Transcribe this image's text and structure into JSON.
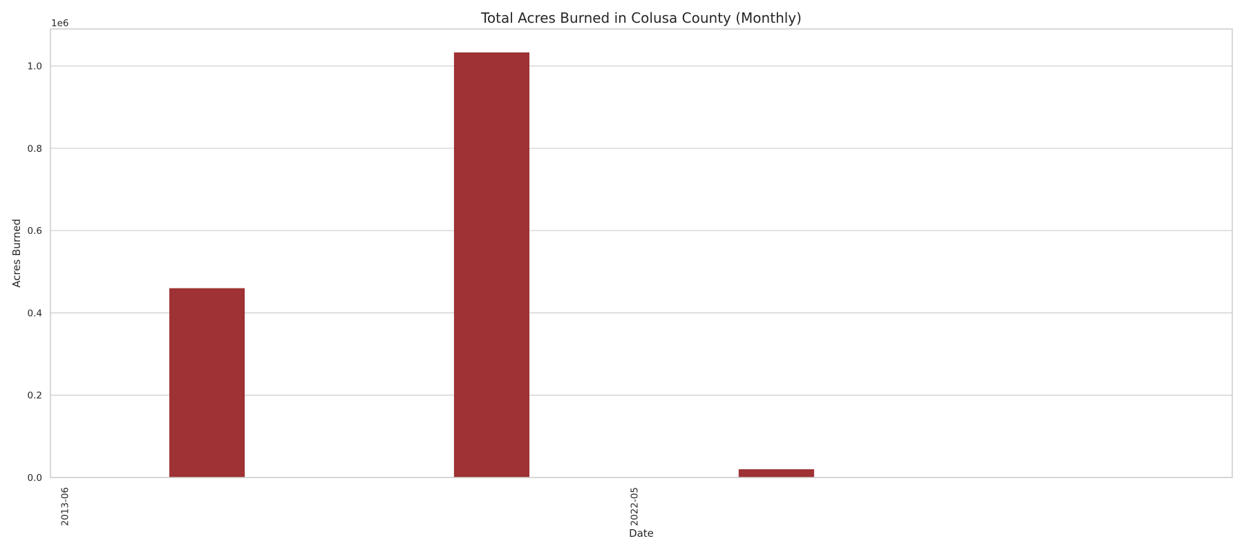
{
  "chart_data": {
    "type": "bar",
    "title": "Total Acres Burned in Colusa County (Monthly)",
    "xlabel": "Date",
    "ylabel": "Acres Burned",
    "y_offset_label": "1e6",
    "categories": [
      "2013-06",
      "",
      "",
      "",
      "2022-05",
      "",
      "",
      ""
    ],
    "visible_tick_labels": [
      "2013-06",
      "2022-05"
    ],
    "values": [
      0,
      460000,
      0,
      1033000,
      0,
      20000,
      0,
      0
    ],
    "ylim": [
      0,
      1090000
    ],
    "y_ticks": [
      0,
      200000,
      400000,
      600000,
      800000,
      1000000
    ],
    "y_tick_labels": [
      "0.0",
      "0.2",
      "0.4",
      "0.6",
      "0.8",
      "1.0"
    ],
    "grid": "horizontal",
    "bar_color": "#9e3234"
  }
}
